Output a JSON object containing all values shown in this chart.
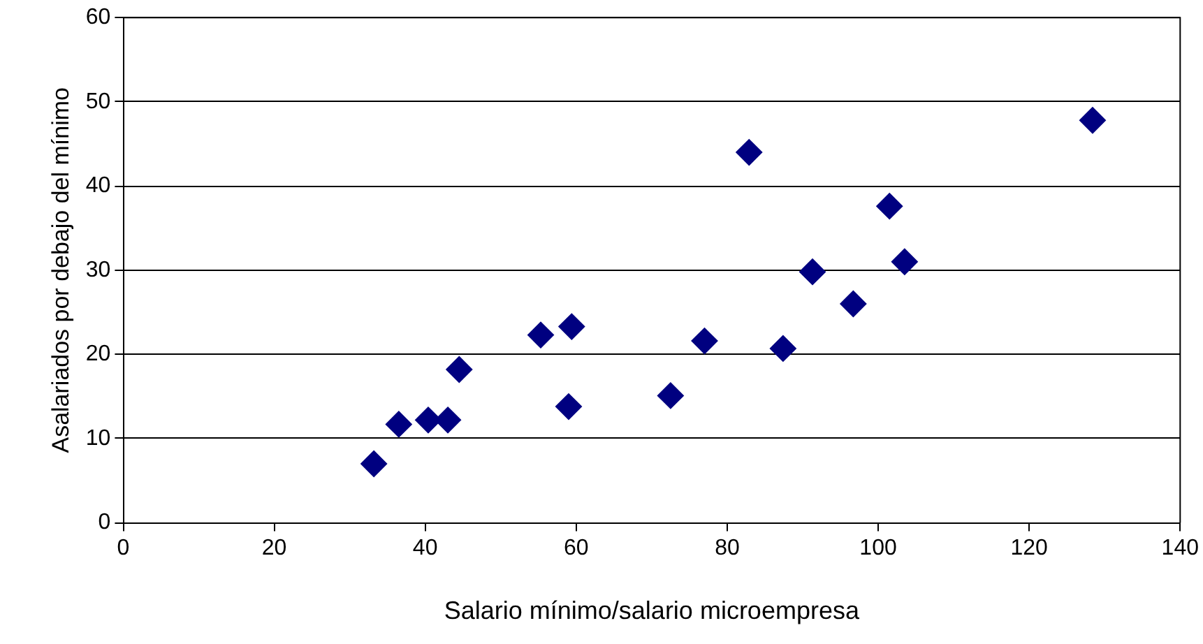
{
  "chart_data": {
    "type": "scatter",
    "xlabel": "Salario mínimo/salario microempresa",
    "ylabel": "Asalariados por debajo del mínimo",
    "x": [
      33.2,
      36.5,
      40.4,
      43.0,
      44.5,
      55.3,
      59.0,
      59.4,
      72.5,
      77.0,
      82.9,
      87.4,
      91.3,
      96.7,
      101.5,
      103.5,
      128.4
    ],
    "series": [
      {
        "color": "#000080",
        "values": [
          7.0,
          11.7,
          12.2,
          12.2,
          18.2,
          22.3,
          13.8,
          23.3,
          15.1,
          21.6,
          44.0,
          20.7,
          29.8,
          26.0,
          37.6,
          31.0,
          47.8
        ]
      }
    ],
    "xlim": [
      0,
      140
    ],
    "xticks": [
      0,
      20,
      40,
      60,
      80,
      100,
      120,
      140
    ],
    "ylim": [
      0,
      60
    ],
    "yticks": [
      0,
      10,
      20,
      30,
      40,
      50,
      60
    ],
    "grid": "y",
    "marker": "diamond",
    "legend": false
  }
}
